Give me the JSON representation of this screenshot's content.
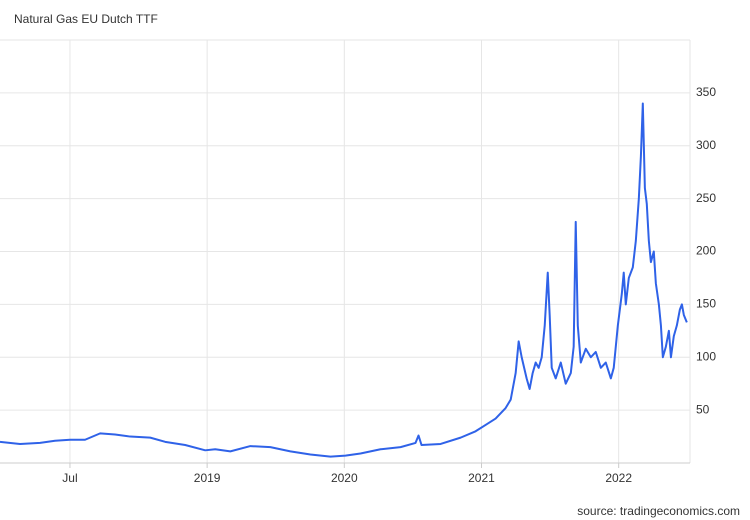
{
  "chart_data": {
    "type": "line",
    "title": "Natural Gas EU Dutch TTF",
    "source": "source: tradingeconomics.com",
    "x": [
      2017.49,
      2017.636,
      2017.782,
      2017.891,
      2018.001,
      2018.11,
      2018.22,
      2018.329,
      2018.439,
      2018.585,
      2018.694,
      2018.84,
      2018.986,
      2019.059,
      2019.169,
      2019.315,
      2019.461,
      2019.607,
      2019.753,
      2019.899,
      2020.008,
      2020.118,
      2020.264,
      2020.41,
      2020.519,
      2020.541,
      2020.563,
      2020.702,
      2020.848,
      2020.957,
      2021.03,
      2021.103,
      2021.176,
      2021.213,
      2021.249,
      2021.271,
      2021.293,
      2021.329,
      2021.351,
      2021.373,
      2021.395,
      2021.417,
      2021.439,
      2021.461,
      2021.483,
      2021.497,
      2021.512,
      2021.541,
      2021.578,
      2021.614,
      2021.651,
      2021.672,
      2021.687,
      2021.702,
      2021.724,
      2021.76,
      2021.797,
      2021.833,
      2021.87,
      2021.906,
      2021.943,
      2021.964,
      2021.994,
      2022.023,
      2022.037,
      2022.052,
      2022.074,
      2022.103,
      2022.125,
      2022.147,
      2022.162,
      2022.176,
      2022.191,
      2022.205,
      2022.22,
      2022.235,
      2022.256,
      2022.271,
      2022.293,
      2022.308,
      2022.322,
      2022.344,
      2022.366,
      2022.381,
      2022.402,
      2022.424,
      2022.446,
      2022.461,
      2022.475,
      2022.497
    ],
    "series": [
      {
        "name": "TTF",
        "color": "#2f62e8",
        "values": [
          20,
          18,
          19,
          21,
          22,
          22,
          28,
          27,
          25,
          24,
          20,
          17,
          12,
          13,
          11,
          16,
          15,
          11,
          8,
          6,
          7,
          9,
          13,
          15,
          19,
          26,
          17,
          18,
          24,
          30,
          36,
          42,
          52,
          60,
          85,
          115,
          100,
          80,
          70,
          85,
          95,
          90,
          100,
          130,
          180,
          140,
          90,
          80,
          95,
          75,
          85,
          110,
          228,
          130,
          95,
          108,
          100,
          105,
          90,
          95,
          80,
          90,
          130,
          160,
          180,
          150,
          175,
          185,
          210,
          250,
          290,
          340,
          260,
          245,
          210,
          190,
          200,
          170,
          150,
          130,
          100,
          110,
          125,
          100,
          120,
          130,
          145,
          150,
          140,
          133
        ]
      }
    ],
    "xlim": [
      2017.49,
      2022.52
    ],
    "xticks": [
      {
        "value": 2018,
        "label": "Jul"
      },
      2019,
      2020,
      2021,
      2022
    ],
    "ylim": [
      0,
      400
    ],
    "yticks": [
      50,
      100,
      150,
      200,
      250,
      300,
      350
    ],
    "grid": true
  }
}
